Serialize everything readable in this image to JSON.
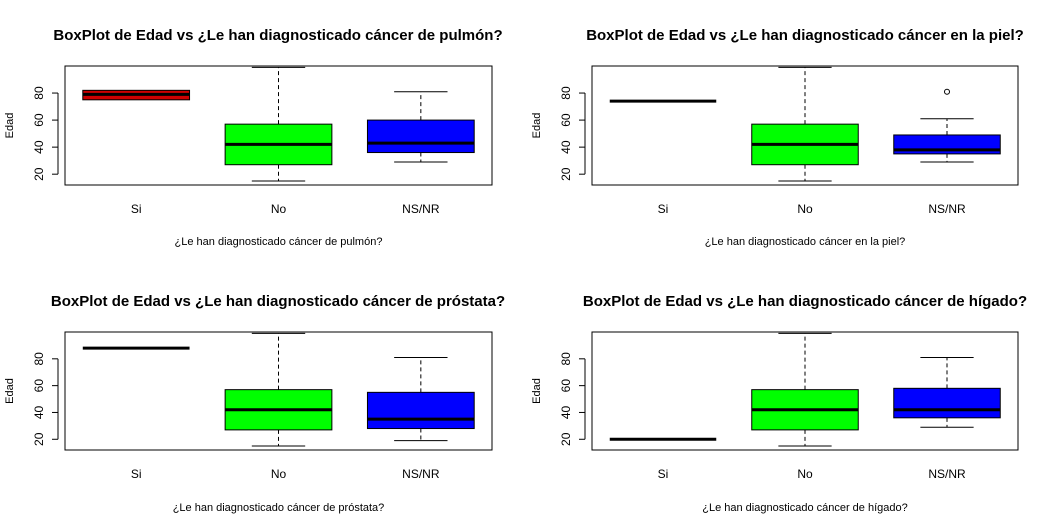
{
  "chart_data": [
    {
      "type": "box",
      "title": "BoxPlot de Edad vs  ¿Le han diagnosticado cáncer de pulmón?",
      "xlabel": "¿Le han diagnosticado cáncer de pulmón?",
      "ylabel": "Edad",
      "ylim": [
        12,
        100
      ],
      "yticks": [
        20,
        40,
        60,
        80
      ],
      "categories": [
        "Si",
        "No",
        "NS/NR"
      ],
      "boxes": [
        {
          "category": "Si",
          "min": 75,
          "q1": 75,
          "median": 79,
          "q3": 82,
          "max": 82,
          "outliers": [],
          "color": "#cd0000"
        },
        {
          "category": "No",
          "min": 15,
          "q1": 27,
          "median": 42,
          "q3": 57,
          "max": 99,
          "outliers": [],
          "color": "#00ff00"
        },
        {
          "category": "NS/NR",
          "min": 29,
          "q1": 36,
          "median": 43,
          "q3": 60,
          "max": 81,
          "outliers": [],
          "color": "#0000ff"
        }
      ]
    },
    {
      "type": "box",
      "title": "BoxPlot de Edad vs  ¿Le han diagnosticado cáncer  en la piel?",
      "xlabel": "¿Le han diagnosticado cáncer  en la piel?",
      "ylabel": "Edad",
      "ylim": [
        12,
        100
      ],
      "yticks": [
        20,
        40,
        60,
        80
      ],
      "categories": [
        "Si",
        "No",
        "NS/NR"
      ],
      "boxes": [
        {
          "category": "Si",
          "min": 74,
          "q1": 74,
          "median": 74,
          "q3": 74,
          "max": 74,
          "outliers": [],
          "color": "#cd0000"
        },
        {
          "category": "No",
          "min": 15,
          "q1": 27,
          "median": 42,
          "q3": 57,
          "max": 99,
          "outliers": [],
          "color": "#00ff00"
        },
        {
          "category": "NS/NR",
          "min": 29,
          "q1": 35,
          "median": 38,
          "q3": 49,
          "max": 61,
          "outliers": [
            81
          ],
          "color": "#0000ff"
        }
      ]
    },
    {
      "type": "box",
      "title": "BoxPlot de Edad vs  ¿Le han diagnosticado cáncer de próstata?",
      "xlabel": "¿Le han diagnosticado cáncer de próstata?",
      "ylabel": "Edad",
      "ylim": [
        12,
        100
      ],
      "yticks": [
        20,
        40,
        60,
        80
      ],
      "categories": [
        "Si",
        "No",
        "NS/NR"
      ],
      "boxes": [
        {
          "category": "Si",
          "min": 88,
          "q1": 88,
          "median": 88,
          "q3": 88,
          "max": 88,
          "outliers": [],
          "color": "#cd0000"
        },
        {
          "category": "No",
          "min": 15,
          "q1": 27,
          "median": 42,
          "q3": 57,
          "max": 99,
          "outliers": [],
          "color": "#00ff00"
        },
        {
          "category": "NS/NR",
          "min": 19,
          "q1": 28,
          "median": 35,
          "q3": 55,
          "max": 81,
          "outliers": [],
          "color": "#0000ff"
        }
      ]
    },
    {
      "type": "box",
      "title": "BoxPlot de Edad vs   ¿Le han diagnosticado cáncer de hígado?",
      "xlabel": "¿Le han diagnosticado cáncer de hígado?",
      "ylabel": "Edad",
      "ylim": [
        12,
        100
      ],
      "yticks": [
        20,
        40,
        60,
        80
      ],
      "categories": [
        "Si",
        "No",
        "NS/NR"
      ],
      "boxes": [
        {
          "category": "Si",
          "min": 20,
          "q1": 20,
          "median": 20,
          "q3": 20,
          "max": 20,
          "outliers": [],
          "color": "#cd0000"
        },
        {
          "category": "No",
          "min": 15,
          "q1": 27,
          "median": 42,
          "q3": 57,
          "max": 99,
          "outliers": [],
          "color": "#00ff00"
        },
        {
          "category": "NS/NR",
          "min": 29,
          "q1": 36,
          "median": 42,
          "q3": 58,
          "max": 81,
          "outliers": [],
          "color": "#0000ff"
        }
      ]
    }
  ]
}
